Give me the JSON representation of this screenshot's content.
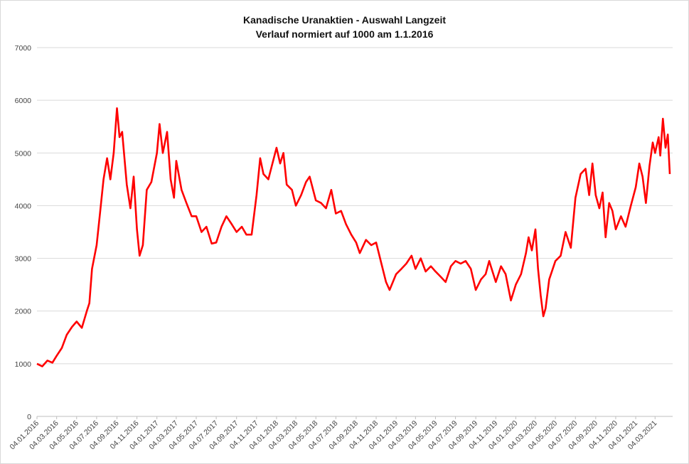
{
  "chart_data": {
    "type": "line",
    "title": "Kanadische Uranaktien - Auswahl Langzeit",
    "subtitle": "Verlauf normiert auf 1000 am 1.1.2016",
    "xlabel": "",
    "ylabel": "",
    "ylim": [
      0,
      7000
    ],
    "yticks": [
      0,
      1000,
      2000,
      3000,
      4000,
      5000,
      6000,
      7000
    ],
    "grid": "horizontal",
    "legend": "none",
    "line_color": "#ff0000",
    "x_tick_labels": [
      "04.01.2016",
      "04.03.2016",
      "04.05.2016",
      "04.07.2016",
      "04.09.2016",
      "04.11.2016",
      "04.01.2017",
      "04.03.2017",
      "04.05.2017",
      "04.07.2017",
      "04.09.2017",
      "04.11.2017",
      "04.01.2018",
      "04.03.2018",
      "04.05.2018",
      "04.07.2018",
      "04.09.2018",
      "04.11.2018",
      "04.01.2019",
      "04.03.2019",
      "04.05.2019",
      "04.07.2019",
      "04.09.2019",
      "04.11.2019",
      "04.01.2020",
      "04.03.2020",
      "04.05.2020",
      "04.07.2020",
      "04.09.2020",
      "04.11.2020",
      "04.01.2021",
      "04.03.2021"
    ],
    "series": [
      {
        "values": [
          {
            "x": "2016-01-04",
            "y": 1000
          },
          {
            "x": "2016-01-20",
            "y": 950
          },
          {
            "x": "2016-02-05",
            "y": 1060
          },
          {
            "x": "2016-02-20",
            "y": 1020
          },
          {
            "x": "2016-03-04",
            "y": 1150
          },
          {
            "x": "2016-03-20",
            "y": 1300
          },
          {
            "x": "2016-04-04",
            "y": 1550
          },
          {
            "x": "2016-04-20",
            "y": 1700
          },
          {
            "x": "2016-05-04",
            "y": 1800
          },
          {
            "x": "2016-05-20",
            "y": 1680
          },
          {
            "x": "2016-06-04",
            "y": 2000
          },
          {
            "x": "2016-06-12",
            "y": 2150
          },
          {
            "x": "2016-06-20",
            "y": 2800
          },
          {
            "x": "2016-07-04",
            "y": 3250
          },
          {
            "x": "2016-07-15",
            "y": 3900
          },
          {
            "x": "2016-07-25",
            "y": 4500
          },
          {
            "x": "2016-08-05",
            "y": 4900
          },
          {
            "x": "2016-08-15",
            "y": 4500
          },
          {
            "x": "2016-08-25",
            "y": 5000
          },
          {
            "x": "2016-09-04",
            "y": 5850
          },
          {
            "x": "2016-09-12",
            "y": 5300
          },
          {
            "x": "2016-09-20",
            "y": 5400
          },
          {
            "x": "2016-10-04",
            "y": 4400
          },
          {
            "x": "2016-10-15",
            "y": 3950
          },
          {
            "x": "2016-10-25",
            "y": 4550
          },
          {
            "x": "2016-11-04",
            "y": 3550
          },
          {
            "x": "2016-11-12",
            "y": 3050
          },
          {
            "x": "2016-11-22",
            "y": 3250
          },
          {
            "x": "2016-12-04",
            "y": 4300
          },
          {
            "x": "2016-12-18",
            "y": 4450
          },
          {
            "x": "2017-01-04",
            "y": 5000
          },
          {
            "x": "2017-01-12",
            "y": 5550
          },
          {
            "x": "2017-01-22",
            "y": 5000
          },
          {
            "x": "2017-02-04",
            "y": 5400
          },
          {
            "x": "2017-02-15",
            "y": 4500
          },
          {
            "x": "2017-02-25",
            "y": 4150
          },
          {
            "x": "2017-03-04",
            "y": 4850
          },
          {
            "x": "2017-03-20",
            "y": 4300
          },
          {
            "x": "2017-04-04",
            "y": 4050
          },
          {
            "x": "2017-04-20",
            "y": 3800
          },
          {
            "x": "2017-05-04",
            "y": 3800
          },
          {
            "x": "2017-05-20",
            "y": 3500
          },
          {
            "x": "2017-06-04",
            "y": 3600
          },
          {
            "x": "2017-06-20",
            "y": 3280
          },
          {
            "x": "2017-07-04",
            "y": 3300
          },
          {
            "x": "2017-07-20",
            "y": 3600
          },
          {
            "x": "2017-08-04",
            "y": 3800
          },
          {
            "x": "2017-08-20",
            "y": 3650
          },
          {
            "x": "2017-09-04",
            "y": 3500
          },
          {
            "x": "2017-09-20",
            "y": 3600
          },
          {
            "x": "2017-10-04",
            "y": 3450
          },
          {
            "x": "2017-10-20",
            "y": 3450
          },
          {
            "x": "2017-11-04",
            "y": 4200
          },
          {
            "x": "2017-11-15",
            "y": 4900
          },
          {
            "x": "2017-11-25",
            "y": 4600
          },
          {
            "x": "2017-12-10",
            "y": 4500
          },
          {
            "x": "2018-01-04",
            "y": 5100
          },
          {
            "x": "2018-01-15",
            "y": 4800
          },
          {
            "x": "2018-01-25",
            "y": 5000
          },
          {
            "x": "2018-02-04",
            "y": 4400
          },
          {
            "x": "2018-02-20",
            "y": 4300
          },
          {
            "x": "2018-03-04",
            "y": 4000
          },
          {
            "x": "2018-03-20",
            "y": 4200
          },
          {
            "x": "2018-04-04",
            "y": 4450
          },
          {
            "x": "2018-04-15",
            "y": 4550
          },
          {
            "x": "2018-05-04",
            "y": 4100
          },
          {
            "x": "2018-05-20",
            "y": 4050
          },
          {
            "x": "2018-06-04",
            "y": 3950
          },
          {
            "x": "2018-06-20",
            "y": 4300
          },
          {
            "x": "2018-07-04",
            "y": 3850
          },
          {
            "x": "2018-07-20",
            "y": 3900
          },
          {
            "x": "2018-08-04",
            "y": 3650
          },
          {
            "x": "2018-08-20",
            "y": 3450
          },
          {
            "x": "2018-09-04",
            "y": 3300
          },
          {
            "x": "2018-09-15",
            "y": 3100
          },
          {
            "x": "2018-10-04",
            "y": 3350
          },
          {
            "x": "2018-10-20",
            "y": 3250
          },
          {
            "x": "2018-11-04",
            "y": 3300
          },
          {
            "x": "2018-11-20",
            "y": 2900
          },
          {
            "x": "2018-12-04",
            "y": 2550
          },
          {
            "x": "2018-12-15",
            "y": 2400
          },
          {
            "x": "2019-01-04",
            "y": 2700
          },
          {
            "x": "2019-01-20",
            "y": 2800
          },
          {
            "x": "2019-02-04",
            "y": 2900
          },
          {
            "x": "2019-02-20",
            "y": 3050
          },
          {
            "x": "2019-03-04",
            "y": 2800
          },
          {
            "x": "2019-03-20",
            "y": 3000
          },
          {
            "x": "2019-04-04",
            "y": 2750
          },
          {
            "x": "2019-04-20",
            "y": 2850
          },
          {
            "x": "2019-05-04",
            "y": 2750
          },
          {
            "x": "2019-05-20",
            "y": 2650
          },
          {
            "x": "2019-06-04",
            "y": 2550
          },
          {
            "x": "2019-06-20",
            "y": 2850
          },
          {
            "x": "2019-07-04",
            "y": 2950
          },
          {
            "x": "2019-07-20",
            "y": 2900
          },
          {
            "x": "2019-08-04",
            "y": 2950
          },
          {
            "x": "2019-08-20",
            "y": 2800
          },
          {
            "x": "2019-09-04",
            "y": 2400
          },
          {
            "x": "2019-09-20",
            "y": 2600
          },
          {
            "x": "2019-10-04",
            "y": 2700
          },
          {
            "x": "2019-10-15",
            "y": 2950
          },
          {
            "x": "2019-11-04",
            "y": 2550
          },
          {
            "x": "2019-11-20",
            "y": 2850
          },
          {
            "x": "2019-12-04",
            "y": 2700
          },
          {
            "x": "2019-12-20",
            "y": 2200
          },
          {
            "x": "2020-01-04",
            "y": 2500
          },
          {
            "x": "2020-01-20",
            "y": 2700
          },
          {
            "x": "2020-02-04",
            "y": 3100
          },
          {
            "x": "2020-02-12",
            "y": 3400
          },
          {
            "x": "2020-02-22",
            "y": 3150
          },
          {
            "x": "2020-03-04",
            "y": 3550
          },
          {
            "x": "2020-03-12",
            "y": 2800
          },
          {
            "x": "2020-03-20",
            "y": 2300
          },
          {
            "x": "2020-03-28",
            "y": 1900
          },
          {
            "x": "2020-04-04",
            "y": 2050
          },
          {
            "x": "2020-04-15",
            "y": 2600
          },
          {
            "x": "2020-05-04",
            "y": 2950
          },
          {
            "x": "2020-05-20",
            "y": 3050
          },
          {
            "x": "2020-06-04",
            "y": 3500
          },
          {
            "x": "2020-06-20",
            "y": 3200
          },
          {
            "x": "2020-07-04",
            "y": 4150
          },
          {
            "x": "2020-07-20",
            "y": 4600
          },
          {
            "x": "2020-08-04",
            "y": 4700
          },
          {
            "x": "2020-08-15",
            "y": 4200
          },
          {
            "x": "2020-08-25",
            "y": 4800
          },
          {
            "x": "2020-09-04",
            "y": 4200
          },
          {
            "x": "2020-09-15",
            "y": 3950
          },
          {
            "x": "2020-09-25",
            "y": 4250
          },
          {
            "x": "2020-10-04",
            "y": 3400
          },
          {
            "x": "2020-10-15",
            "y": 4050
          },
          {
            "x": "2020-10-25",
            "y": 3900
          },
          {
            "x": "2020-11-04",
            "y": 3550
          },
          {
            "x": "2020-11-20",
            "y": 3800
          },
          {
            "x": "2020-12-04",
            "y": 3600
          },
          {
            "x": "2020-12-20",
            "y": 4000
          },
          {
            "x": "2021-01-04",
            "y": 4350
          },
          {
            "x": "2021-01-15",
            "y": 4800
          },
          {
            "x": "2021-01-25",
            "y": 4550
          },
          {
            "x": "2021-02-04",
            "y": 4050
          },
          {
            "x": "2021-02-15",
            "y": 4750
          },
          {
            "x": "2021-02-25",
            "y": 5200
          },
          {
            "x": "2021-03-04",
            "y": 5000
          },
          {
            "x": "2021-03-15",
            "y": 5300
          },
          {
            "x": "2021-03-20",
            "y": 4950
          },
          {
            "x": "2021-03-28",
            "y": 5650
          },
          {
            "x": "2021-04-05",
            "y": 5100
          },
          {
            "x": "2021-04-12",
            "y": 5350
          },
          {
            "x": "2021-04-18",
            "y": 4600
          }
        ]
      }
    ]
  }
}
